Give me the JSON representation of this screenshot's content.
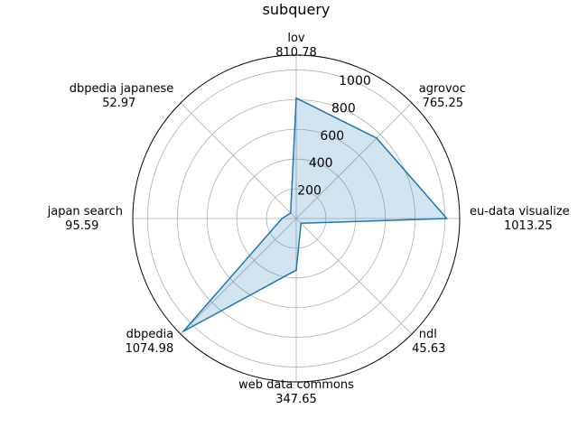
{
  "chart_data": {
    "type": "radar",
    "title": "subquery",
    "categories": [
      "eu-data visualize",
      "agrovoc",
      "lov",
      "dbpedia japanese",
      "japan search",
      "dbpedia",
      "web data commons",
      "ndl"
    ],
    "value_labels": [
      "1013.25",
      "765.25",
      "810.78",
      "52.97",
      "95.59",
      "1074.98",
      "347.65",
      "45.63"
    ],
    "series": [
      {
        "values": [
          1013.25,
          765.25,
          810.78,
          52.97,
          95.59,
          1074.98,
          347.65,
          45.63
        ]
      }
    ],
    "radial_ticks": [
      "200",
      "400",
      "600",
      "800",
      "1000"
    ],
    "rlim": [
      0,
      1100
    ],
    "grid": true,
    "legend": "none",
    "colors": {
      "line": "#1f77b4",
      "fill": "#1f77b4",
      "grid": "#b0b0b0",
      "frame": "#000000"
    }
  }
}
